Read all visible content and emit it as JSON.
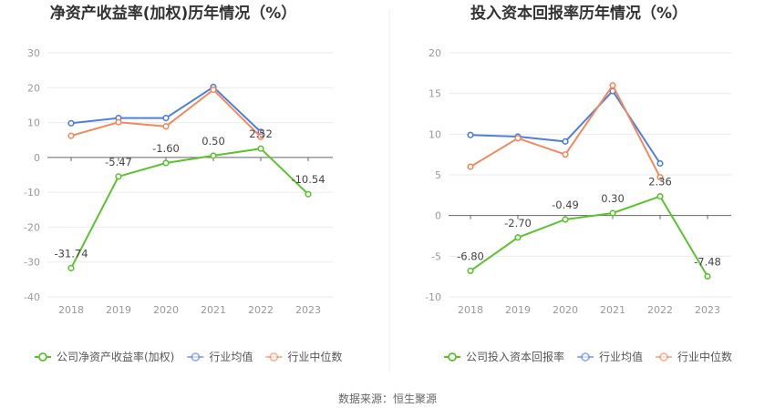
{
  "source": "数据来源：恒生聚源",
  "colors": {
    "company": "#5cc230",
    "avg": "#4f7fdc",
    "median": "#f08a5d"
  },
  "chart_data": [
    {
      "type": "line",
      "title": "净资产收益率(加权)历年情况（%）",
      "x": [
        "2018",
        "2019",
        "2020",
        "2021",
        "2022",
        "2023"
      ],
      "ylim": [
        -40,
        30
      ],
      "yticks": [
        30,
        20,
        10,
        0,
        -10,
        -20,
        -30,
        -40
      ],
      "grid": true,
      "legend": "bottom",
      "series": [
        {
          "name": "公司净资产收益率(加权)",
          "color": "#5cc230",
          "values": [
            -31.74,
            -5.47,
            -1.6,
            0.5,
            2.52,
            -10.54
          ],
          "labels": [
            "-31.74",
            "-5.47",
            "-1.60",
            "0.50",
            "2.52",
            "-10.54"
          ]
        },
        {
          "name": "行业均值",
          "color": "#4f7fdc",
          "values": [
            9.8,
            11.3,
            11.3,
            20.2,
            7.3,
            null
          ]
        },
        {
          "name": "行业中位数",
          "color": "#f08a5d",
          "values": [
            6.2,
            10.1,
            8.9,
            19.4,
            5.9,
            null
          ]
        }
      ]
    },
    {
      "type": "line",
      "title": "投入资本回报率历年情况（%）",
      "x": [
        "2018",
        "2019",
        "2020",
        "2021",
        "2022",
        "2023"
      ],
      "ylim": [
        -10,
        20
      ],
      "yticks": [
        20,
        15,
        10,
        5,
        0,
        -5,
        -10
      ],
      "grid": true,
      "legend": "bottom",
      "series": [
        {
          "name": "公司投入资本回报率",
          "color": "#5cc230",
          "values": [
            -6.8,
            -2.7,
            -0.49,
            0.3,
            2.36,
            -7.48
          ],
          "labels": [
            "-6.80",
            "-2.70",
            "-0.49",
            "0.30",
            "2.36",
            "-7.48"
          ]
        },
        {
          "name": "行业均值",
          "color": "#4f7fdc",
          "values": [
            9.9,
            9.7,
            9.1,
            15.3,
            6.4,
            null
          ]
        },
        {
          "name": "行业中位数",
          "color": "#f08a5d",
          "values": [
            6.0,
            9.5,
            7.5,
            16.0,
            4.7,
            null
          ]
        }
      ]
    }
  ]
}
